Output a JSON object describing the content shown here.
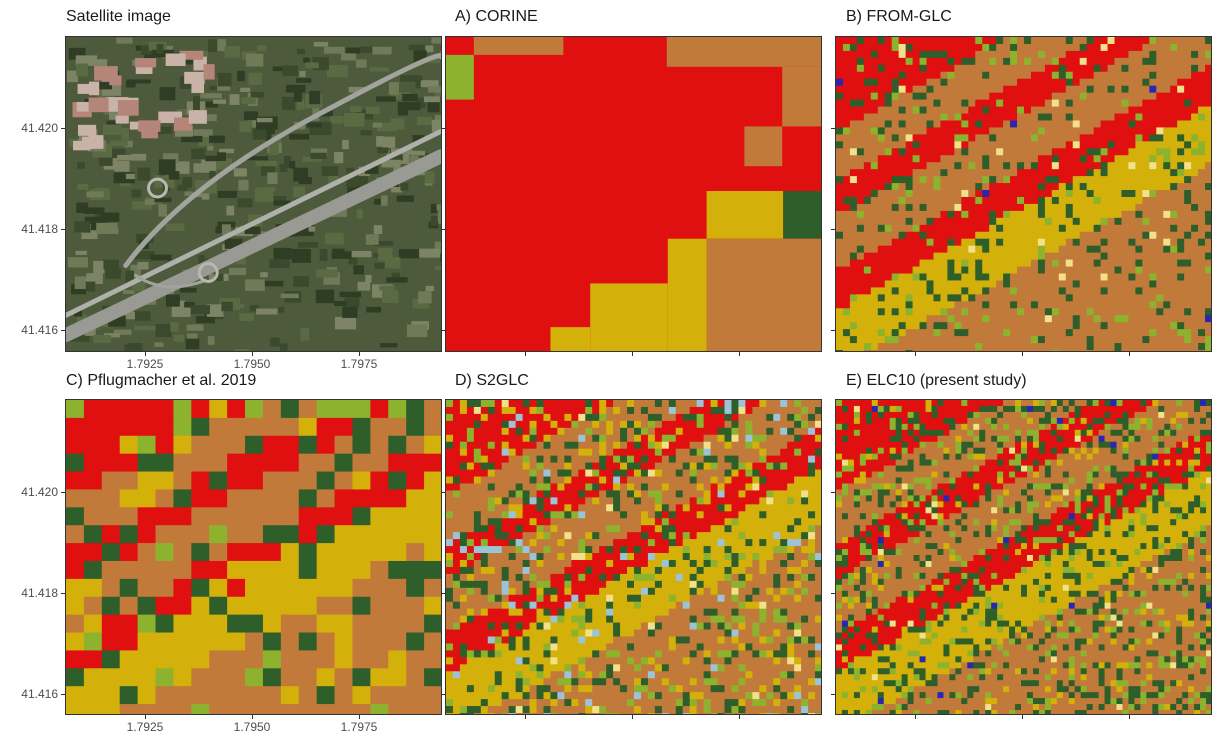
{
  "panels": [
    {
      "key": "satellite",
      "title": "Satellite image"
    },
    {
      "key": "corine",
      "title": "A) CORINE"
    },
    {
      "key": "fromglc",
      "title": "B)  FROM-GLC"
    },
    {
      "key": "pflug",
      "title": "C)  Pflugmacher et al. 2019"
    },
    {
      "key": "s2glc",
      "title": "D) S2GLC"
    },
    {
      "key": "elc10",
      "title": "E) ELC10 (present study)"
    }
  ],
  "axes": {
    "y_ticks": [
      "41.420",
      "41.418",
      "41.416"
    ],
    "x_ticks": [
      "1.7925",
      "1.7950",
      "1.7975"
    ]
  },
  "class_colors": {
    "artificial": "#e01010",
    "cropland": "#c27a3a",
    "grassland": "#d4b10a",
    "woodland": "#2e5e2a",
    "shrubland": "#8db32e",
    "bare": "#f3e08a",
    "water": "#2727b0",
    "wetland": "#9cc3d8"
  }
}
